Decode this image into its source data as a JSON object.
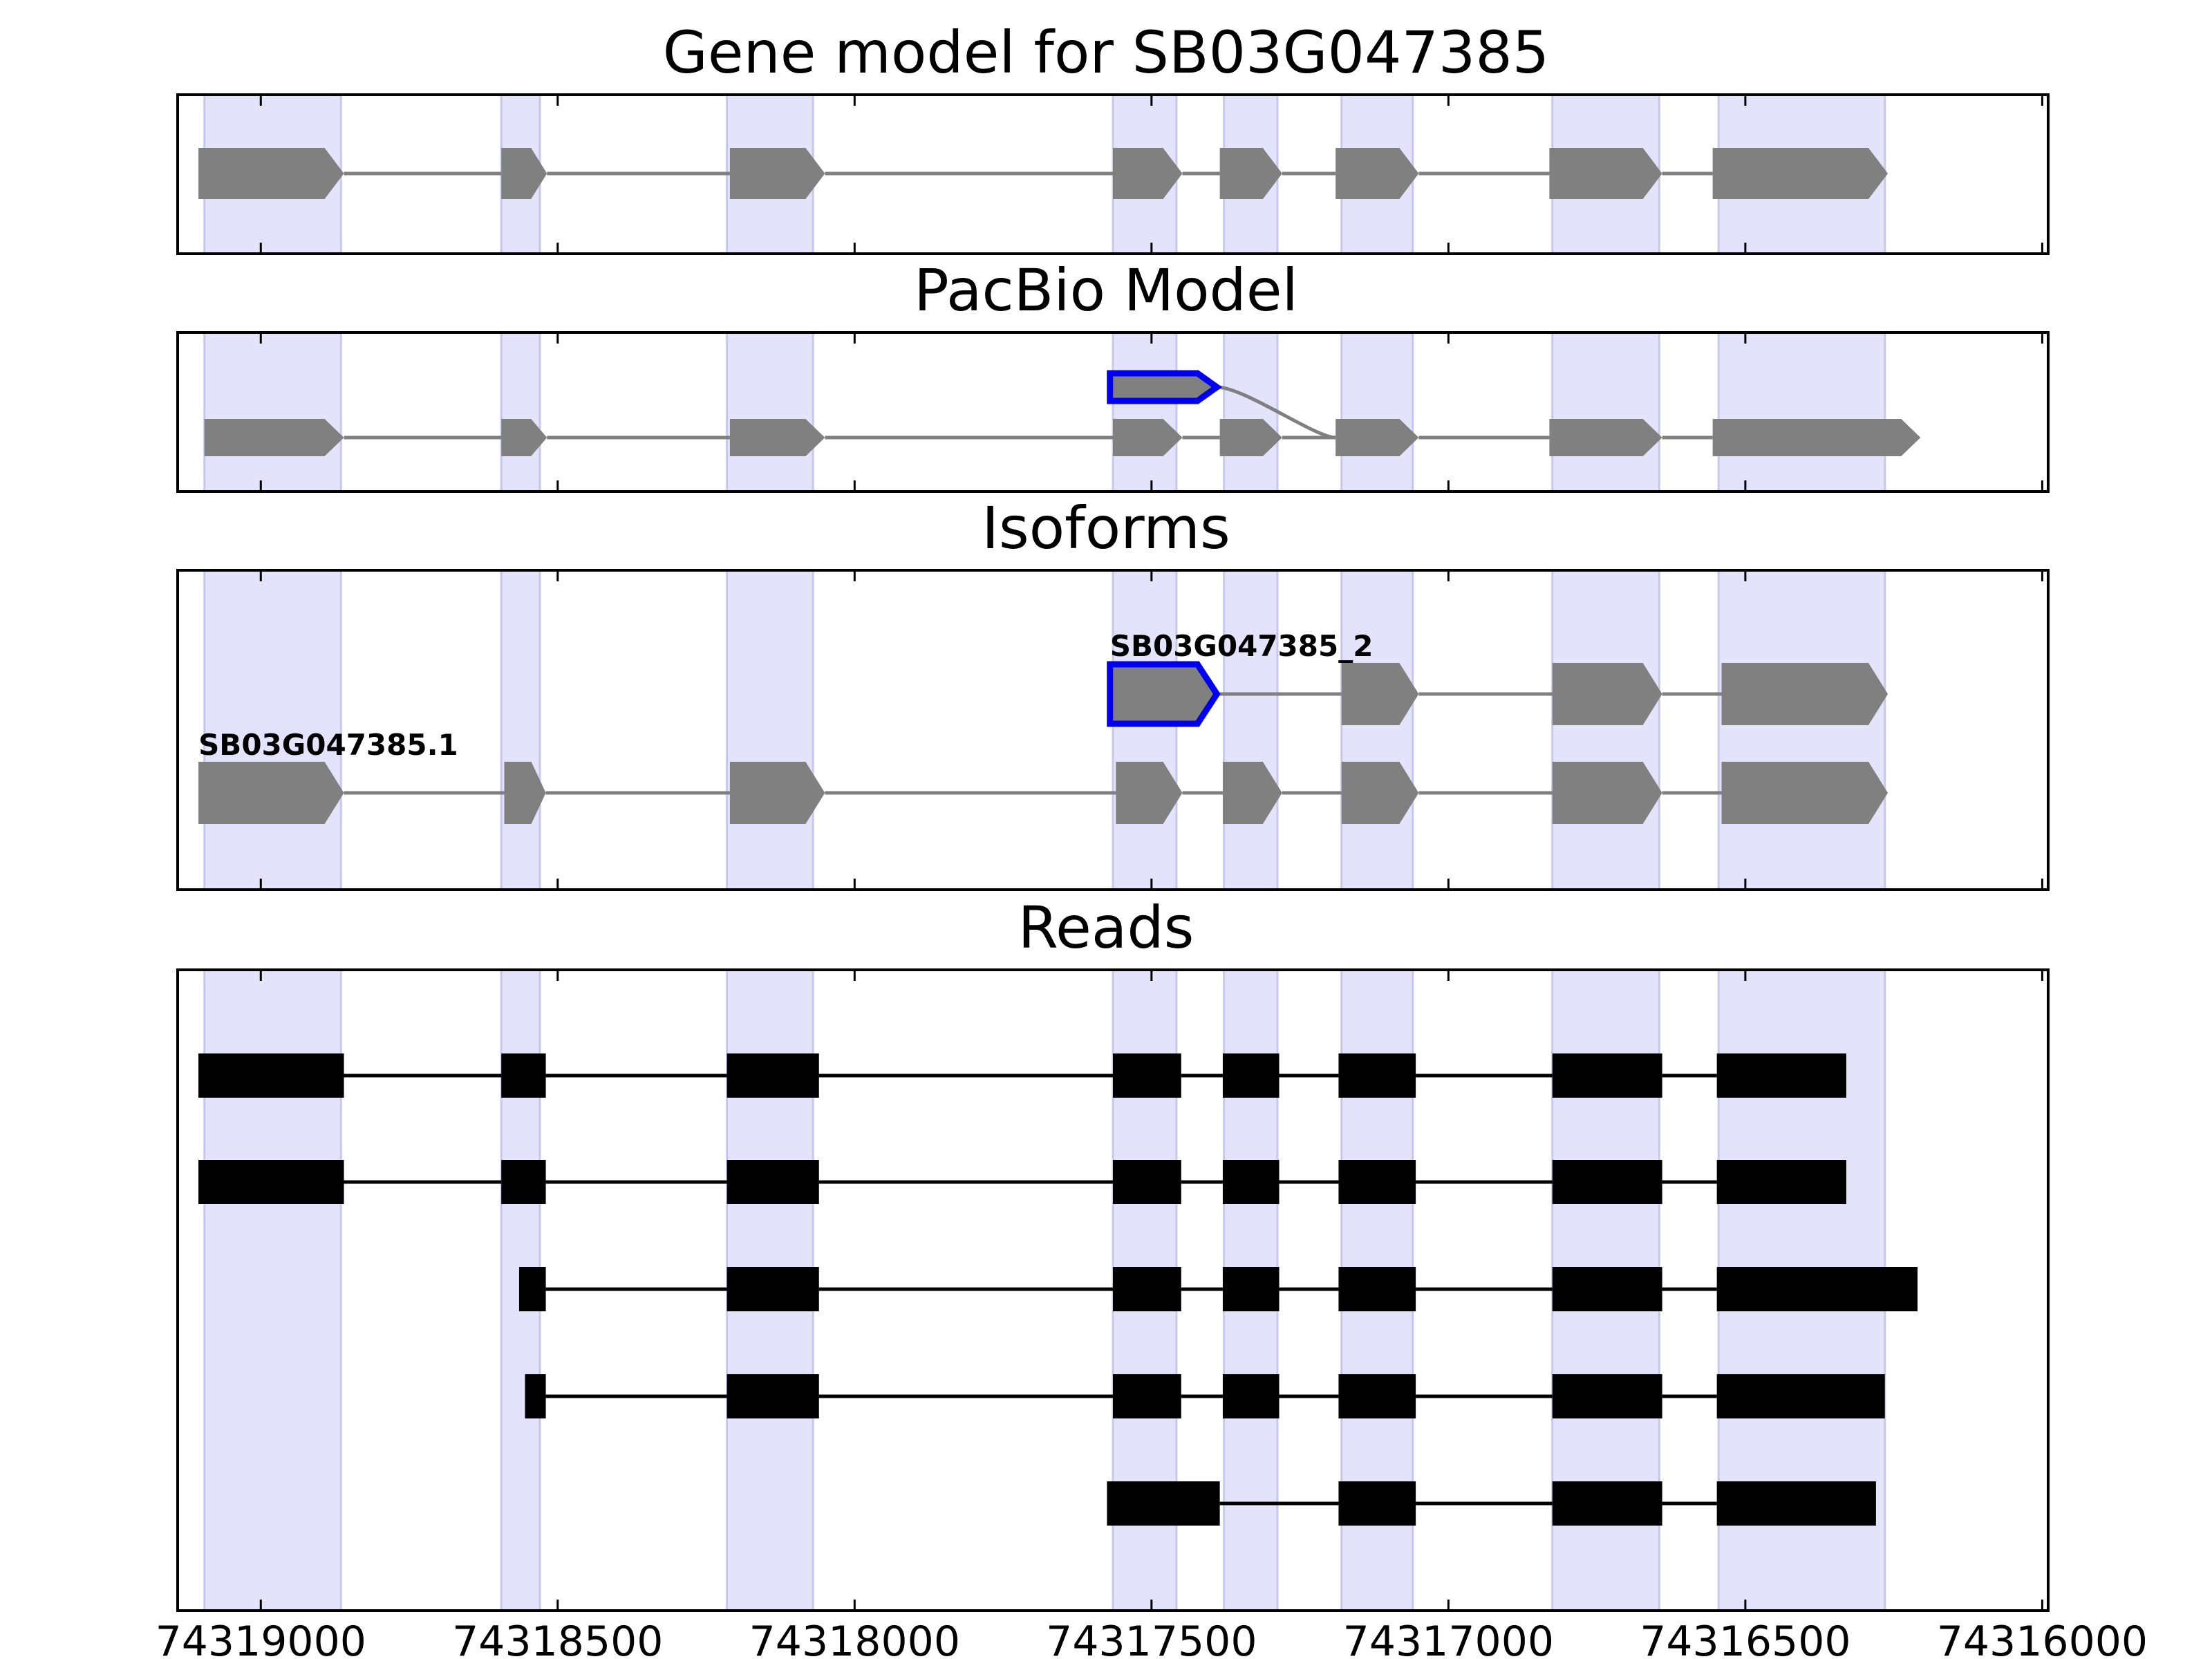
{
  "chart_data": {
    "type": "gene_structure",
    "colors": {
      "exon_band": "#e3e3fb",
      "exon_band_edge": "#c8c8ee",
      "feature_fill": "#808080",
      "intron_line": "#808080",
      "highlight_outline": "#0000ee",
      "read_fill": "#000000",
      "frame": "#000000"
    },
    "x_axis": {
      "reversed": true,
      "xlim": [
        74319140,
        74315990
      ],
      "ticks": [
        74319000,
        74318500,
        74318000,
        74317500,
        74317000,
        74316500,
        74316000
      ],
      "tick_labels": [
        "74319000",
        "74318500",
        "74318000",
        "74317500",
        "74317000",
        "74316500",
        "74316000"
      ]
    },
    "exon_bands": [
      [
        74319095,
        74318865
      ],
      [
        74318595,
        74318530
      ],
      [
        74318215,
        74318070
      ],
      [
        74317565,
        74317458
      ],
      [
        74317378,
        74317288
      ],
      [
        74317180,
        74317060
      ],
      [
        74316825,
        74316645
      ],
      [
        74316545,
        74316265
      ]
    ],
    "panels": [
      {
        "title": "Gene model for SB03G047385",
        "features": [
          {
            "exons": [
              [
                74319105,
                74318860
              ],
              [
                74318595,
                74318518
              ],
              [
                74318210,
                74318050
              ],
              [
                74317565,
                74317448
              ],
              [
                74317385,
                74317280
              ],
              [
                74317190,
                74317050
              ],
              [
                74316830,
                74316640
              ],
              [
                74316555,
                74316260
              ]
            ]
          }
        ]
      },
      {
        "title": "PacBio Model",
        "features": [
          {
            "highlight": true,
            "exons": [
              [
                74317570,
                74317390
              ]
            ]
          },
          {
            "exons": [
              [
                74319095,
                74318860
              ],
              [
                74318595,
                74318518
              ],
              [
                74318210,
                74318050
              ],
              [
                74317565,
                74317448
              ],
              [
                74317385,
                74317280
              ],
              [
                74317190,
                74317050
              ],
              [
                74316830,
                74316640
              ],
              [
                74316555,
                74316205
              ]
            ]
          }
        ]
      },
      {
        "title": "Isoforms",
        "isoforms": [
          {
            "label": "SB03G047385_2",
            "highlight": true,
            "exons": [
              [
                74317570,
                74317390
              ],
              [
                74317180,
                74317050
              ],
              [
                74316825,
                74316640
              ],
              [
                74316540,
                74316260
              ]
            ]
          },
          {
            "label": "SB03G047385.1",
            "exons": [
              [
                74319105,
                74318860
              ],
              [
                74318590,
                74318520
              ],
              [
                74318210,
                74318050
              ],
              [
                74317560,
                74317448
              ],
              [
                74317380,
                74317280
              ],
              [
                74317180,
                74317050
              ],
              [
                74316825,
                74316640
              ],
              [
                74316540,
                74316260
              ]
            ]
          }
        ]
      },
      {
        "title": "Reads",
        "reads": [
          [
            [
              74319105,
              74318860
            ],
            [
              74318595,
              74318520
            ],
            [
              74318215,
              74318060
            ],
            [
              74317565,
              74317450
            ],
            [
              74317380,
              74317285
            ],
            [
              74317185,
              74317055
            ],
            [
              74316825,
              74316640
            ],
            [
              74316548,
              74316330
            ]
          ],
          [
            [
              74319105,
              74318860
            ],
            [
              74318595,
              74318520
            ],
            [
              74318215,
              74318060
            ],
            [
              74317565,
              74317450
            ],
            [
              74317380,
              74317285
            ],
            [
              74317185,
              74317055
            ],
            [
              74316825,
              74316640
            ],
            [
              74316548,
              74316330
            ]
          ],
          [
            [
              74318565,
              74318520
            ],
            [
              74318215,
              74318060
            ],
            [
              74317565,
              74317450
            ],
            [
              74317380,
              74317285
            ],
            [
              74317185,
              74317055
            ],
            [
              74316825,
              74316640
            ],
            [
              74316548,
              74316210
            ]
          ],
          [
            [
              74318555,
              74318520
            ],
            [
              74318215,
              74318060
            ],
            [
              74317565,
              74317450
            ],
            [
              74317380,
              74317285
            ],
            [
              74317185,
              74317055
            ],
            [
              74316825,
              74316640
            ],
            [
              74316548,
              74316265
            ]
          ],
          [
            [
              74317575,
              74317385
            ],
            [
              74317185,
              74317055
            ],
            [
              74316825,
              74316640
            ],
            [
              74316548,
              74316280
            ]
          ]
        ]
      }
    ]
  }
}
